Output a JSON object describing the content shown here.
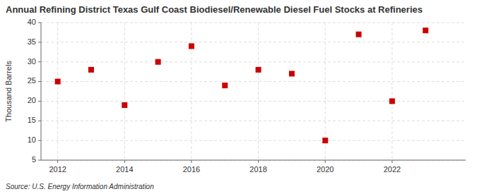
{
  "chart_data": {
    "type": "scatter",
    "title": "Annual Refining District Texas Gulf Coast Biodiesel/Renewable Diesel Fuel Stocks at Refineries",
    "ylabel": "Thousand Barrels",
    "source": "Source: U.S. Energy Information Administration",
    "x": [
      2012,
      2013,
      2014,
      2015,
      2016,
      2017,
      2018,
      2019,
      2020,
      2021,
      2022,
      2023
    ],
    "values": [
      25,
      28,
      19,
      30,
      34,
      24,
      28,
      27,
      10,
      37,
      20,
      38
    ],
    "color": "#cc0000",
    "marker": "square",
    "xlim": [
      2011.5,
      2024.2
    ],
    "ylim": [
      5,
      40
    ],
    "xticks": [
      2012,
      2014,
      2016,
      2018,
      2020,
      2022
    ],
    "yticks": [
      5,
      10,
      15,
      20,
      25,
      30,
      35,
      40
    ],
    "grid": true
  }
}
